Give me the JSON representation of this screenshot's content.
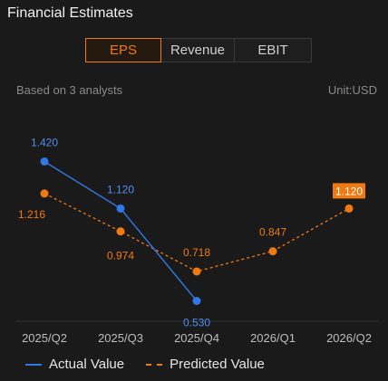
{
  "title": "Financial Estimates",
  "tabs": [
    {
      "label": "EPS",
      "active": true
    },
    {
      "label": "Revenue",
      "active": false
    },
    {
      "label": "EBIT",
      "active": false
    }
  ],
  "analysts_note": "Based on 3 analysts",
  "unit": "Unit:USD",
  "legend": {
    "actual": "Actual Value",
    "predicted": "Predicted Value"
  },
  "colors": {
    "actual": "#2f78e6",
    "predicted": "#f07a12",
    "background": "#1a1a1a"
  },
  "chart_data": {
    "type": "line",
    "categories": [
      "2025/Q2",
      "2025/Q3",
      "2025/Q4",
      "2026/Q1",
      "2026/Q2"
    ],
    "series": [
      {
        "name": "Actual Value",
        "style": "solid",
        "values": [
          1.42,
          1.12,
          0.53,
          null,
          null
        ],
        "labels": [
          "1.420",
          "1.120",
          "0.530",
          null,
          null
        ]
      },
      {
        "name": "Predicted Value",
        "style": "dashed",
        "values": [
          1.216,
          0.974,
          0.718,
          0.847,
          1.12
        ],
        "labels": [
          "1.216",
          "0.974",
          "0.718",
          "0.847",
          "1.120"
        ],
        "highlight_last": true
      }
    ],
    "ylim": [
      0.4,
      1.7
    ],
    "grid": false
  }
}
